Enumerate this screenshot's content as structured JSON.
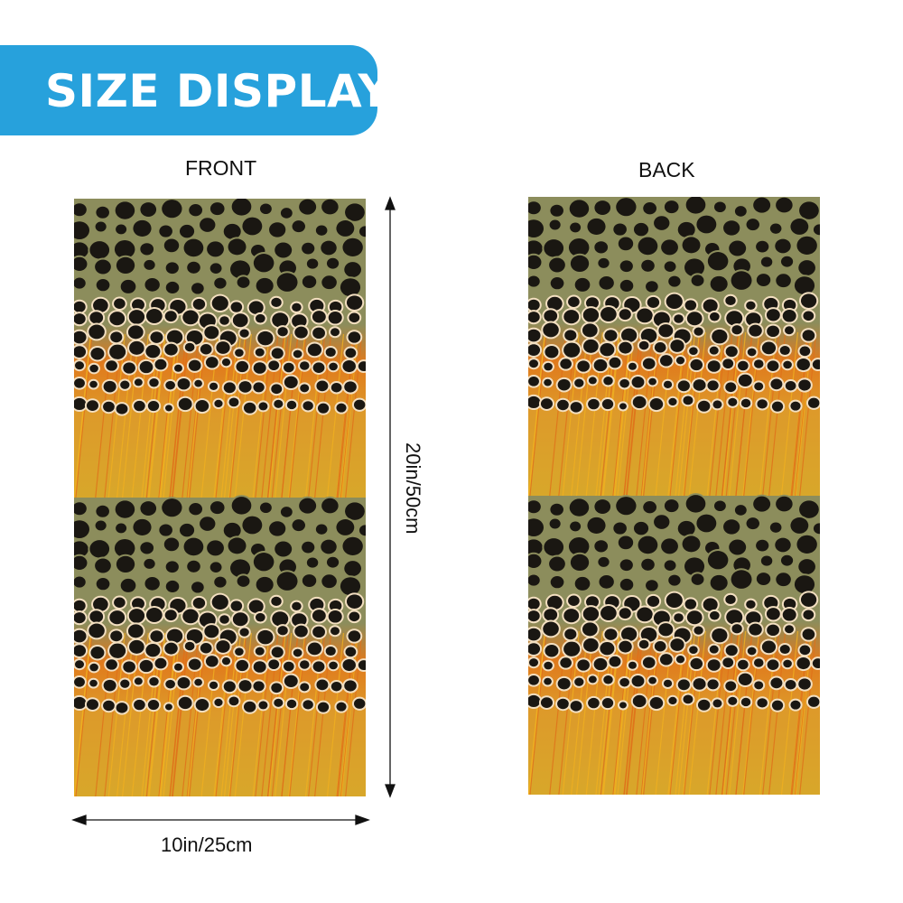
{
  "banner": {
    "title": "SIZE DISPLAY",
    "color": "#27a1dc"
  },
  "views": {
    "front": "FRONT",
    "back": "BACK"
  },
  "dimensions": {
    "height": "20in/50cm",
    "width": "10in/25cm"
  },
  "pattern": {
    "name": "brown trout skin",
    "colors": {
      "olive": "#8c8d5c",
      "orange": "#e07a1c",
      "yellow": "#d8a72a",
      "spot": "#1a1712",
      "rim": "#f3dfc0"
    }
  }
}
